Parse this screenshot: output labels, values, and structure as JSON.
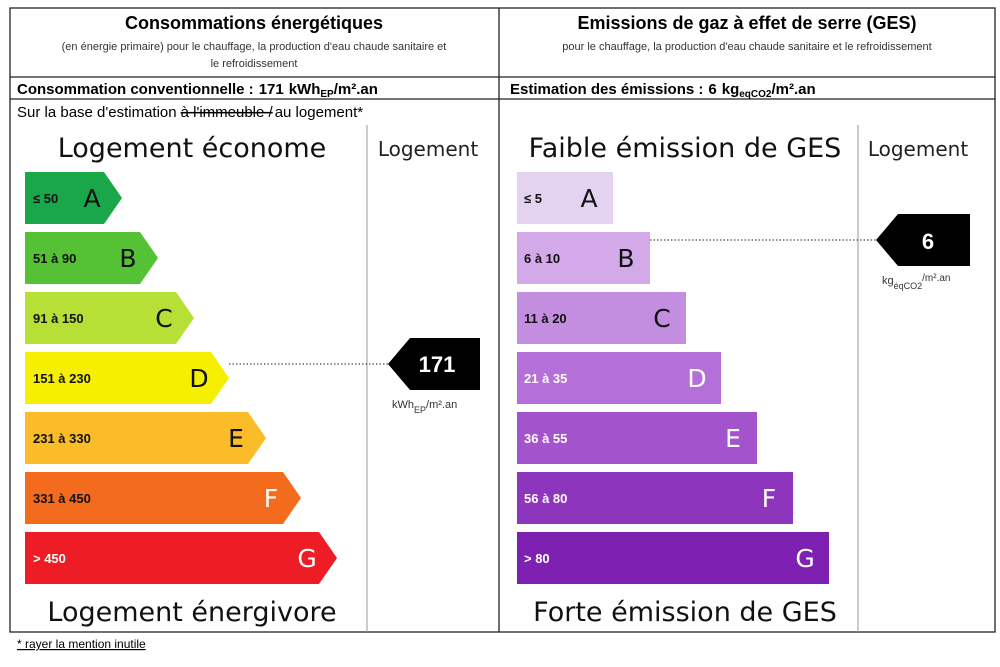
{
  "footnote": "* rayer la mention inutile",
  "left": {
    "title": "Consommations énergétiques",
    "subtitle_lines": [
      "(en énergie primaire) pour le chauffage, la production d'eau chaude sanitaire et",
      "le refroidissement"
    ],
    "summary": {
      "label": "Consommation conventionnelle :",
      "value": 171,
      "unit": "kWh",
      "unit_sub": "EP",
      "unit_rest": "/m².an"
    },
    "basis": {
      "before": "Sur la base d'estimation",
      "struck": "à l'immeuble /",
      "after": "au logement*"
    },
    "top_label": "Logement économe",
    "column_label": "Logement",
    "bottom_label": "Logement énergivore",
    "arrow": {
      "value": 171,
      "unit": "kWh",
      "unit_sub": "EP",
      "unit_rest": "/m².an"
    },
    "classes": [
      {
        "range": "≤ 50",
        "letter": "A",
        "color": "#1aa74a"
      },
      {
        "range": "51 à 90",
        "letter": "B",
        "color": "#55c236"
      },
      {
        "range": "91 à 150",
        "letter": "C",
        "color": "#b7e037"
      },
      {
        "range": "151 à 230",
        "letter": "D",
        "color": "#f5f000"
      },
      {
        "range": "231 à 330",
        "letter": "E",
        "color": "#fbbc2a"
      },
      {
        "range": "331 à 450",
        "letter": "F",
        "color": "#f36b1c"
      },
      {
        "range": "> 450",
        "letter": "G",
        "color": "#ee1c24"
      }
    ]
  },
  "right": {
    "title": "Emissions de gaz à effet de serre (GES)",
    "subtitle_lines": [
      "pour le chauffage, la production d'eau chaude sanitaire et le refroidissement"
    ],
    "summary": {
      "label": "Estimation des émissions :",
      "value": 6,
      "unit": "kg",
      "unit_sub": "eqCO2",
      "unit_rest": "/m².an"
    },
    "top_label": "Faible émission de GES",
    "column_label": "Logement",
    "bottom_label": "Forte émission de GES",
    "arrow": {
      "value": 6,
      "unit": "kg",
      "unit_sub": "éqCO2",
      "unit_rest": "/m².an"
    },
    "classes": [
      {
        "range": "≤ 5",
        "letter": "A",
        "color": "#e4d3f0"
      },
      {
        "range": "6 à 10",
        "letter": "B",
        "color": "#d3a9ea"
      },
      {
        "range": "11 à 20",
        "letter": "C",
        "color": "#c48ee0"
      },
      {
        "range": "21 à 35",
        "letter": "D",
        "color": "#b46fd8"
      },
      {
        "range": "36 à 55",
        "letter": "E",
        "color": "#a353cc"
      },
      {
        "range": "56 à 80",
        "letter": "F",
        "color": "#8e35bd"
      },
      {
        "range": "> 80",
        "letter": "G",
        "color": "#7e20b2"
      }
    ]
  }
}
